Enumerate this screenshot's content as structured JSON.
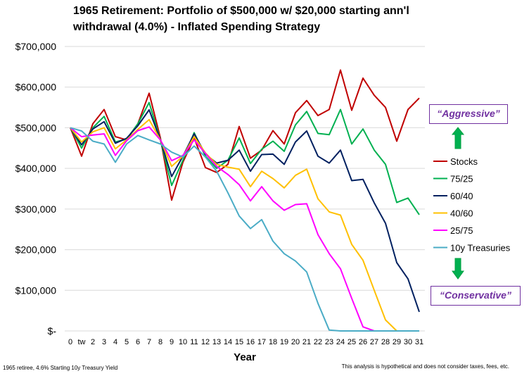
{
  "title_line1": "1965 Retirement:  Portfolio of $500,000 w/ $20,000 starting ann'l",
  "title_line2": "withdrawal (4.0%) - Inflated Spending Strategy",
  "callouts": {
    "aggressive": "“Aggressive”",
    "conservative": "“Conservative”"
  },
  "footnotes": {
    "left": "1965 retiree, 4.6% Starting 10y Treasury Yield",
    "right": "This analysis is hypothetical and does not consider taxes, fees, etc."
  },
  "arrow_colors": {
    "fill": "#00b050",
    "stroke": "#00a040"
  },
  "chart_data": {
    "type": "line",
    "title": "1965 Retirement:  Portfolio of $500,000 w/ $20,000 starting ann'l withdrawal (4.0%) - Inflated Spending Strategy",
    "xlabel": "Year",
    "ylabel": "",
    "categories": [
      "0",
      "tw",
      "2",
      "3",
      "4",
      "5",
      "6",
      "7",
      "8",
      "9",
      "10",
      "11",
      "12",
      "13",
      "14",
      "15",
      "16",
      "17",
      "18",
      "19",
      "20",
      "21",
      "22",
      "23",
      "24",
      "25",
      "26",
      "27",
      "28",
      "29",
      "30",
      "31"
    ],
    "ylim": [
      0,
      700000
    ],
    "yticks": [
      0,
      100000,
      200000,
      300000,
      400000,
      500000,
      600000,
      700000
    ],
    "ytick_labels": [
      "$-",
      "$100,000",
      "$200,000",
      "$300,000",
      "$400,000",
      "$500,000",
      "$600,000",
      "$700,000"
    ],
    "grid": "horizontal",
    "legend_position": "right",
    "series": [
      {
        "name": "Stocks",
        "color": "#c00000",
        "values": [
          500000,
          430000,
          510000,
          545000,
          478000,
          470000,
          510000,
          585000,
          475000,
          322000,
          415000,
          475000,
          402000,
          390000,
          410000,
          503000,
          425000,
          445000,
          493000,
          460000,
          537000,
          567000,
          530000,
          545000,
          642000,
          543000,
          622000,
          580000,
          550000,
          467000,
          545000,
          573000
        ]
      },
      {
        "name": "75/25",
        "color": "#00b050",
        "values": [
          500000,
          450000,
          500000,
          528000,
          465000,
          472000,
          510000,
          562000,
          470000,
          358000,
          420000,
          488000,
          430000,
          400000,
          420000,
          475000,
          412000,
          447000,
          467000,
          442000,
          507000,
          540000,
          486000,
          483000,
          545000,
          460000,
          497000,
          445000,
          410000,
          316000,
          327000,
          286000
        ]
      },
      {
        "name": "60/40",
        "color": "#002060",
        "values": [
          500000,
          458000,
          497000,
          515000,
          462000,
          474000,
          505000,
          544000,
          470000,
          380000,
          430000,
          485000,
          435000,
          413000,
          420000,
          445000,
          393000,
          434000,
          435000,
          410000,
          465000,
          492000,
          430000,
          413000,
          445000,
          370000,
          373000,
          315000,
          265000,
          168000,
          128000,
          47000
        ]
      },
      {
        "name": "40/60",
        "color": "#ffc000",
        "values": [
          500000,
          465000,
          490000,
          500000,
          448000,
          470000,
          496000,
          520000,
          470000,
          405000,
          430000,
          478000,
          438000,
          410000,
          403000,
          398000,
          355000,
          393000,
          375000,
          352000,
          383000,
          398000,
          325000,
          293000,
          285000,
          213000,
          174000,
          100000,
          27000,
          0,
          0,
          0
        ]
      },
      {
        "name": "25/75",
        "color": "#ff00ff",
        "values": [
          500000,
          478000,
          482000,
          485000,
          432000,
          468000,
          493000,
          502000,
          470000,
          419000,
          432000,
          470000,
          437000,
          405000,
          385000,
          360000,
          320000,
          355000,
          320000,
          297000,
          311000,
          313000,
          237000,
          190000,
          153000,
          80000,
          10000,
          0,
          0,
          0,
          0,
          0
        ]
      },
      {
        "name": "10y Treasuries",
        "color": "#4bacc6",
        "values": [
          500000,
          492000,
          467000,
          460000,
          415000,
          460000,
          481000,
          470000,
          460000,
          440000,
          428000,
          455000,
          428000,
          393000,
          340000,
          283000,
          252000,
          274000,
          221000,
          190000,
          172000,
          145000,
          68000,
          2000,
          0,
          0,
          0,
          0,
          0,
          0,
          0,
          0
        ]
      }
    ]
  }
}
